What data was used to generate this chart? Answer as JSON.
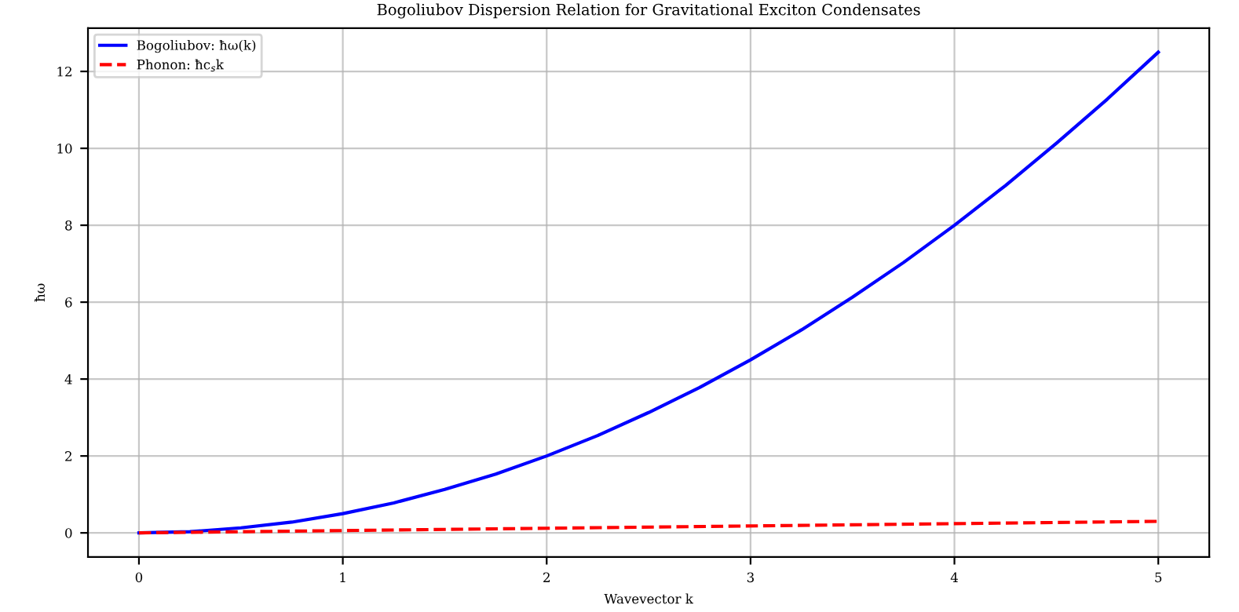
{
  "chart_data": {
    "type": "line",
    "title": "Bogoliubov Dispersion Relation for Gravitational Exciton Condensates",
    "xlabel": "Wavevector k",
    "ylabel": "ħω",
    "series": [
      {
        "name": "Bogoliubov: ħω(k)",
        "color": "#0000ff",
        "line_style": "solid",
        "x": [
          0,
          0.25,
          0.5,
          0.75,
          1,
          1.25,
          1.5,
          1.75,
          2,
          2.25,
          2.5,
          2.75,
          3,
          3.25,
          3.5,
          3.75,
          4,
          4.25,
          4.5,
          4.75,
          5
        ],
        "values": [
          0,
          0.03,
          0.13,
          0.28,
          0.5,
          0.78,
          1.13,
          1.53,
          2,
          2.53,
          3.13,
          3.78,
          4.5,
          5.28,
          6.13,
          7.03,
          8,
          9.03,
          10.13,
          11.28,
          12.5
        ]
      },
      {
        "name": "Phonon: ħc$_{s}$k",
        "color": "#ff0000",
        "line_style": "dashed",
        "x": [
          0,
          5
        ],
        "values": [
          0,
          0.3
        ]
      }
    ],
    "xlim": [
      -0.25,
      5.25
    ],
    "xticks": [
      0,
      1,
      2,
      3,
      4,
      5
    ],
    "ylim": [
      -0.625,
      13.125
    ],
    "yticks": [
      0,
      2,
      4,
      6,
      8,
      10,
      12
    ],
    "grid": true,
    "legend": "top left",
    "marker": "none"
  }
}
